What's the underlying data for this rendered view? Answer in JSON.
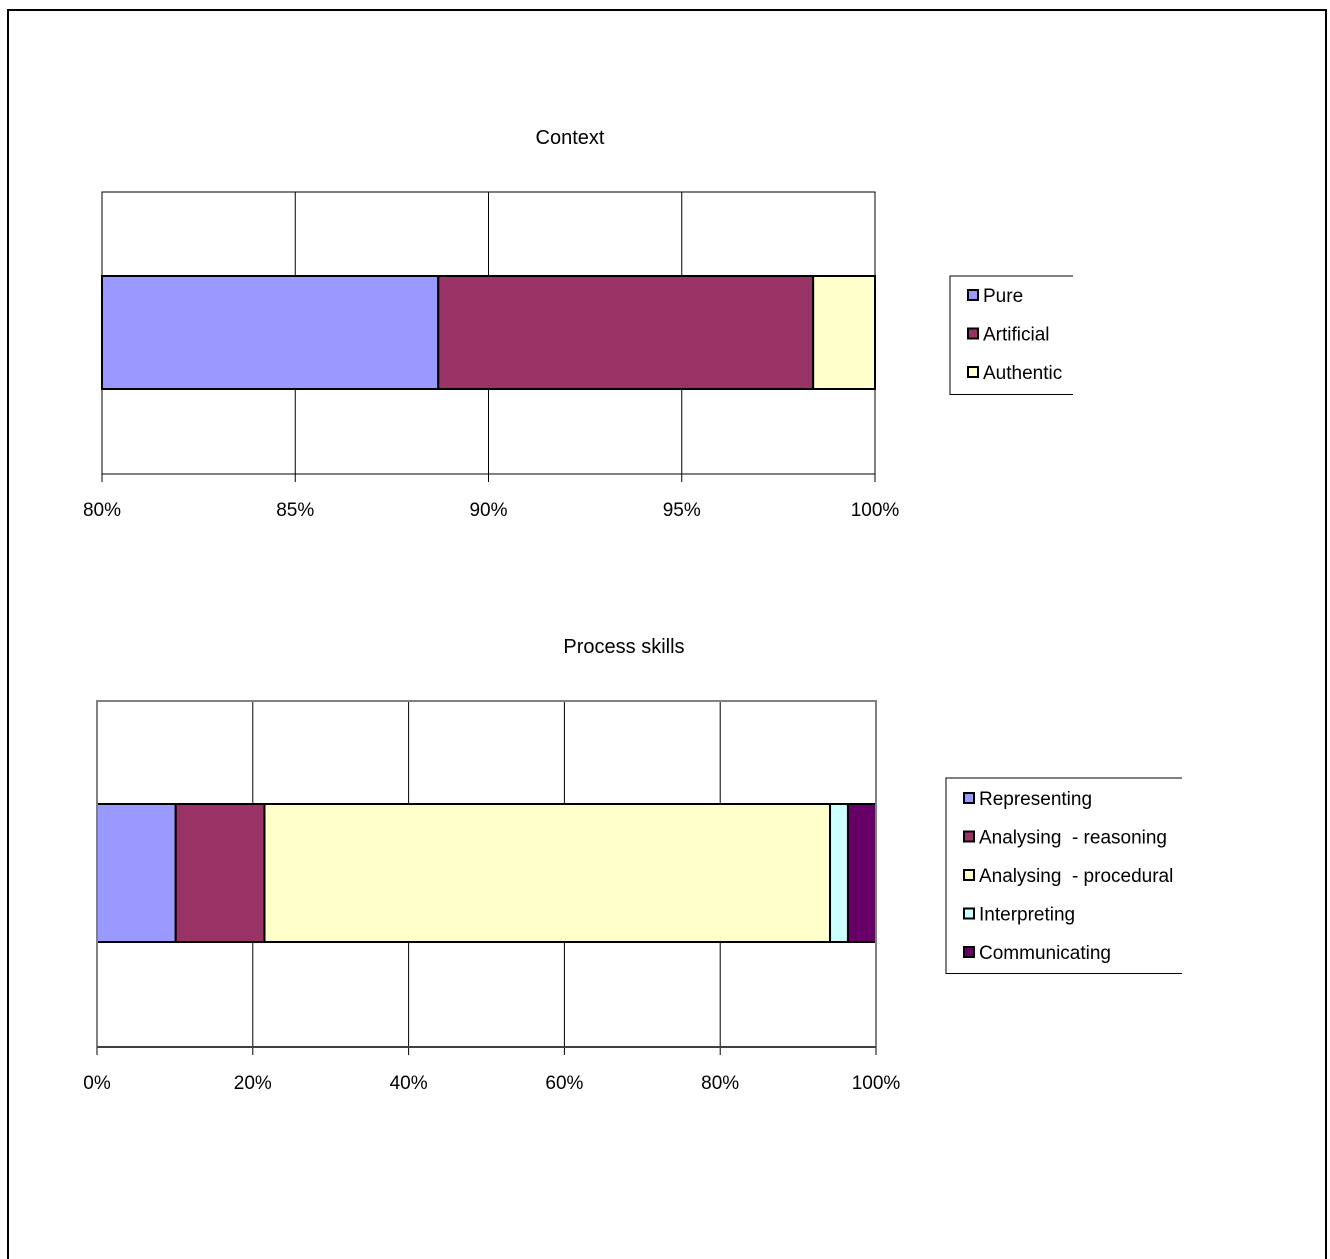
{
  "chart_data": [
    {
      "type": "bar",
      "orientation": "horizontal",
      "stacked": "percent",
      "title": "Context",
      "xlim": [
        80,
        100
      ],
      "x_ticks": [
        "80%",
        "85%",
        "90%",
        "95%",
        "100%"
      ],
      "grid": true,
      "legend_position": "right",
      "series": [
        {
          "name": "Pure",
          "value": 88.7,
          "color": "#9999ff"
        },
        {
          "name": "Artificial",
          "value": 9.7,
          "color": "#993366"
        },
        {
          "name": "Authentic",
          "value": 1.6,
          "color": "#ffffcc"
        }
      ]
    },
    {
      "type": "bar",
      "orientation": "horizontal",
      "stacked": "percent",
      "title": "Process skills",
      "xlim": [
        0,
        100
      ],
      "x_ticks": [
        "0%",
        "20%",
        "40%",
        "60%",
        "80%",
        "100%"
      ],
      "grid": true,
      "legend_position": "right",
      "series": [
        {
          "name": "Representing",
          "value": 10.1,
          "color": "#9999ff"
        },
        {
          "name": "Analysing  - reasoning",
          "value": 11.4,
          "color": "#993366"
        },
        {
          "name": "Analysing  - procedural",
          "value": 72.6,
          "color": "#ffffcc"
        },
        {
          "name": "Interpreting",
          "value": 2.3,
          "color": "#ccffff"
        },
        {
          "name": "Communicating",
          "value": 3.6,
          "color": "#660066"
        }
      ]
    }
  ]
}
